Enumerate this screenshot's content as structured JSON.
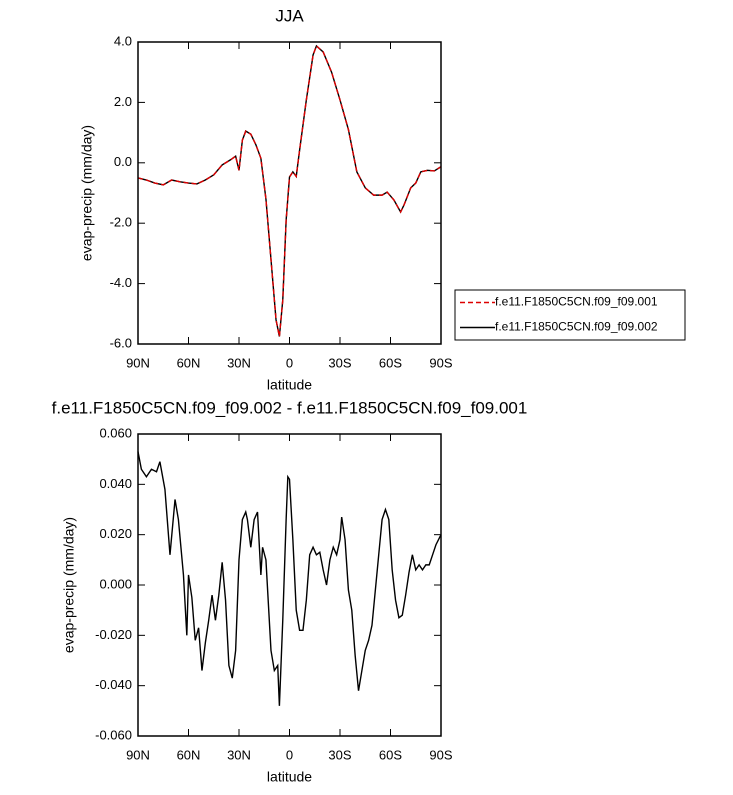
{
  "chart_data": [
    {
      "type": "line",
      "title": "JJA",
      "xlabel": "latitude",
      "ylabel": "evap-precip (mm/day)",
      "x": [
        90,
        85,
        80,
        75,
        70,
        65,
        60,
        55,
        50,
        45,
        40,
        35,
        32,
        30,
        28,
        26,
        23,
        20,
        17,
        14,
        11,
        8,
        6,
        4,
        2,
        0,
        -2,
        -4,
        -6,
        -10,
        -14,
        -16,
        -20,
        -25,
        -30,
        -35,
        -40,
        -45,
        -50,
        -55,
        -58,
        -62,
        -66,
        -68,
        -72,
        -75,
        -78,
        -82,
        -86,
        -90
      ],
      "series": [
        {
          "name": "f.e11.F1850C5CN.f09_f09.001",
          "color": "#dd0000",
          "line_style": "dashed",
          "values": [
            -0.5,
            -0.57,
            -0.67,
            -0.73,
            -0.57,
            -0.63,
            -0.67,
            -0.7,
            -0.57,
            -0.4,
            -0.07,
            0.1,
            0.22,
            -0.25,
            0.75,
            1.05,
            0.95,
            0.6,
            0.15,
            -1.2,
            -3.2,
            -5.2,
            -5.75,
            -4.55,
            -1.9,
            -0.47,
            -0.3,
            -0.45,
            0.42,
            2.08,
            3.57,
            3.87,
            3.67,
            3.0,
            2.08,
            1.1,
            -0.3,
            -0.83,
            -1.07,
            -1.07,
            -0.97,
            -1.23,
            -1.63,
            -1.4,
            -0.83,
            -0.67,
            -0.3,
            -0.25,
            -0.27,
            -0.13
          ]
        },
        {
          "name": "f.e11.F1850C5CN.f09_f09.002",
          "color": "#000000",
          "line_style": "solid",
          "values": [
            -0.5,
            -0.57,
            -0.67,
            -0.73,
            -0.57,
            -0.63,
            -0.67,
            -0.7,
            -0.57,
            -0.4,
            -0.07,
            0.1,
            0.22,
            -0.25,
            0.75,
            1.05,
            0.95,
            0.6,
            0.15,
            -1.2,
            -3.2,
            -5.2,
            -5.75,
            -4.55,
            -1.9,
            -0.47,
            -0.3,
            -0.45,
            0.42,
            2.08,
            3.57,
            3.87,
            3.67,
            3.0,
            2.08,
            1.1,
            -0.3,
            -0.83,
            -1.07,
            -1.07,
            -0.97,
            -1.23,
            -1.63,
            -1.4,
            -0.83,
            -0.67,
            -0.3,
            -0.25,
            -0.27,
            -0.13
          ]
        }
      ],
      "xlim": [
        90,
        -90
      ],
      "xticks": [
        {
          "value": 90,
          "label": "90N"
        },
        {
          "value": 60,
          "label": "60N"
        },
        {
          "value": 30,
          "label": "30N"
        },
        0,
        {
          "value": -30,
          "label": "30S"
        },
        {
          "value": -60,
          "label": "60S"
        },
        {
          "value": -90,
          "label": "90S"
        }
      ],
      "ylim": [
        -6,
        4
      ],
      "yticks": [
        {
          "value": 4,
          "label": "4.0"
        },
        {
          "value": 2,
          "label": "2.0"
        },
        {
          "value": 0,
          "label": "0.0"
        },
        {
          "value": -2,
          "label": "-2.0"
        },
        {
          "value": -4,
          "label": "-4.0"
        },
        {
          "value": -6,
          "label": "-6.0"
        }
      ],
      "legend": "right"
    },
    {
      "type": "line",
      "title": "f.e11.F1850C5CN.f09_f09.002 - f.e11.F1850C5CN.f09_f09.001",
      "xlabel": "latitude",
      "ylabel": "evap-precip (mm/day)",
      "x": [
        90,
        88,
        85,
        82,
        79,
        77,
        74,
        71,
        68,
        66,
        63,
        61,
        60,
        58,
        56,
        54,
        52,
        50,
        48,
        46,
        44,
        42,
        40,
        38,
        36,
        34,
        32,
        30,
        28,
        26,
        25,
        23,
        21,
        19,
        17,
        16,
        14,
        13,
        11,
        9,
        7,
        6,
        4,
        2,
        1,
        0,
        -2,
        -4,
        -6,
        -8,
        -10,
        -12,
        -14,
        -16,
        -18,
        -20,
        -22,
        -24,
        -26,
        -28,
        -30,
        -31,
        -33,
        -35,
        -37,
        -39,
        -41,
        -43,
        -45,
        -47,
        -49,
        -51,
        -53,
        -55,
        -57,
        -59,
        -61,
        -63,
        -65,
        -67,
        -69,
        -71,
        -73,
        -75,
        -77,
        -79,
        -81,
        -83,
        -85,
        -87,
        -90
      ],
      "color": "#000000",
      "values": [
        0.053,
        0.046,
        0.043,
        0.046,
        0.045,
        0.049,
        0.038,
        0.012,
        0.034,
        0.026,
        0.004,
        -0.02,
        0.004,
        -0.005,
        -0.022,
        -0.017,
        -0.034,
        -0.023,
        -0.014,
        -0.004,
        -0.014,
        -0.004,
        0.009,
        -0.006,
        -0.032,
        -0.037,
        -0.026,
        0.01,
        0.026,
        0.029,
        0.026,
        0.015,
        0.026,
        0.029,
        0.004,
        0.015,
        0.01,
        -0.002,
        -0.026,
        -0.034,
        -0.032,
        -0.048,
        -0.014,
        0.026,
        0.043,
        0.042,
        0.018,
        -0.01,
        -0.018,
        -0.018,
        -0.006,
        0.012,
        0.015,
        0.012,
        0.013,
        0.006,
        0,
        0.01,
        0.015,
        0.012,
        0.018,
        0.027,
        0.018,
        -0.002,
        -0.01,
        -0.028,
        -0.042,
        -0.034,
        -0.026,
        -0.022,
        -0.016,
        -0.002,
        0.012,
        0.026,
        0.03,
        0.026,
        0.006,
        -0.006,
        -0.013,
        -0.012,
        -0.004,
        0.005,
        0.012,
        0.006,
        0.008,
        0.006,
        0.008,
        0.008,
        0.012,
        0.016,
        0.02
      ],
      "xlim": [
        90,
        -90
      ],
      "xticks": [
        {
          "value": 90,
          "label": "90N"
        },
        {
          "value": 60,
          "label": "60N"
        },
        {
          "value": 30,
          "label": "30N"
        },
        0,
        {
          "value": -30,
          "label": "30S"
        },
        {
          "value": -60,
          "label": "60S"
        },
        {
          "value": -90,
          "label": "90S"
        }
      ],
      "ylim": [
        -0.06,
        0.06
      ],
      "yticks": [
        {
          "value": 0.06,
          "label": "0.060"
        },
        {
          "value": 0.04,
          "label": "0.040"
        },
        {
          "value": 0.02,
          "label": "0.020"
        },
        {
          "value": 0,
          "label": "0.000"
        },
        {
          "value": -0.02,
          "label": "-0.020"
        },
        {
          "value": -0.04,
          "label": "-0.040"
        },
        {
          "value": -0.06,
          "label": "-0.060"
        }
      ]
    }
  ]
}
